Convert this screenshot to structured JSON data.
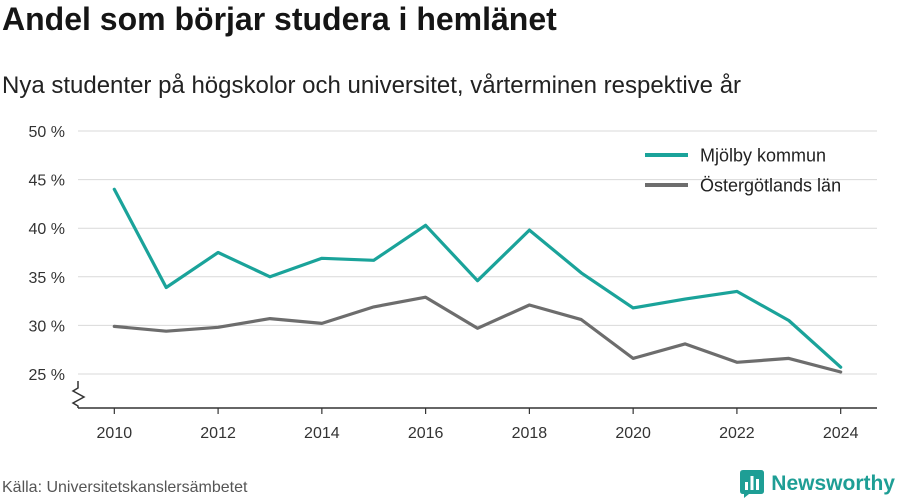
{
  "chart_data": {
    "type": "line",
    "title": "Andel som börjar studera i hemlänet",
    "subtitle": "Nya studenter på högskolor och universitet, vårterminen respektive år",
    "x": [
      2010,
      2011,
      2012,
      2013,
      2014,
      2015,
      2016,
      2017,
      2018,
      2019,
      2020,
      2021,
      2022,
      2023,
      2024
    ],
    "x_ticks": [
      2010,
      2012,
      2014,
      2016,
      2018,
      2020,
      2022,
      2024
    ],
    "xlim": [
      2009.3,
      2024.7
    ],
    "y_ticks": [
      25,
      30,
      35,
      40,
      45,
      50
    ],
    "y_tick_labels": [
      "25 %",
      "30 %",
      "35 %",
      "40 %",
      "45 %",
      "50 %"
    ],
    "ylim": [
      21.5,
      50
    ],
    "y_axis_break": true,
    "grid": true,
    "legend": "top-right",
    "series": [
      {
        "name": "Mjölby kommun",
        "color": "#1aa39a",
        "values": [
          44.0,
          33.9,
          37.5,
          35.0,
          36.9,
          36.7,
          40.3,
          34.6,
          39.8,
          35.4,
          31.8,
          32.7,
          33.5,
          30.5,
          25.7
        ]
      },
      {
        "name": "Östergötlands län",
        "color": "#6d6d6d",
        "values": [
          29.9,
          29.4,
          29.8,
          30.7,
          30.2,
          31.9,
          32.9,
          29.7,
          32.1,
          30.6,
          26.6,
          28.1,
          26.2,
          26.6,
          25.2
        ]
      }
    ]
  },
  "footer": {
    "source": "Källa: Universitetskanslersämbetet",
    "logo": {
      "text": "Newsworthy",
      "icon": "bar-chart-speech-bubble-icon",
      "color": "#1e9e95"
    }
  }
}
